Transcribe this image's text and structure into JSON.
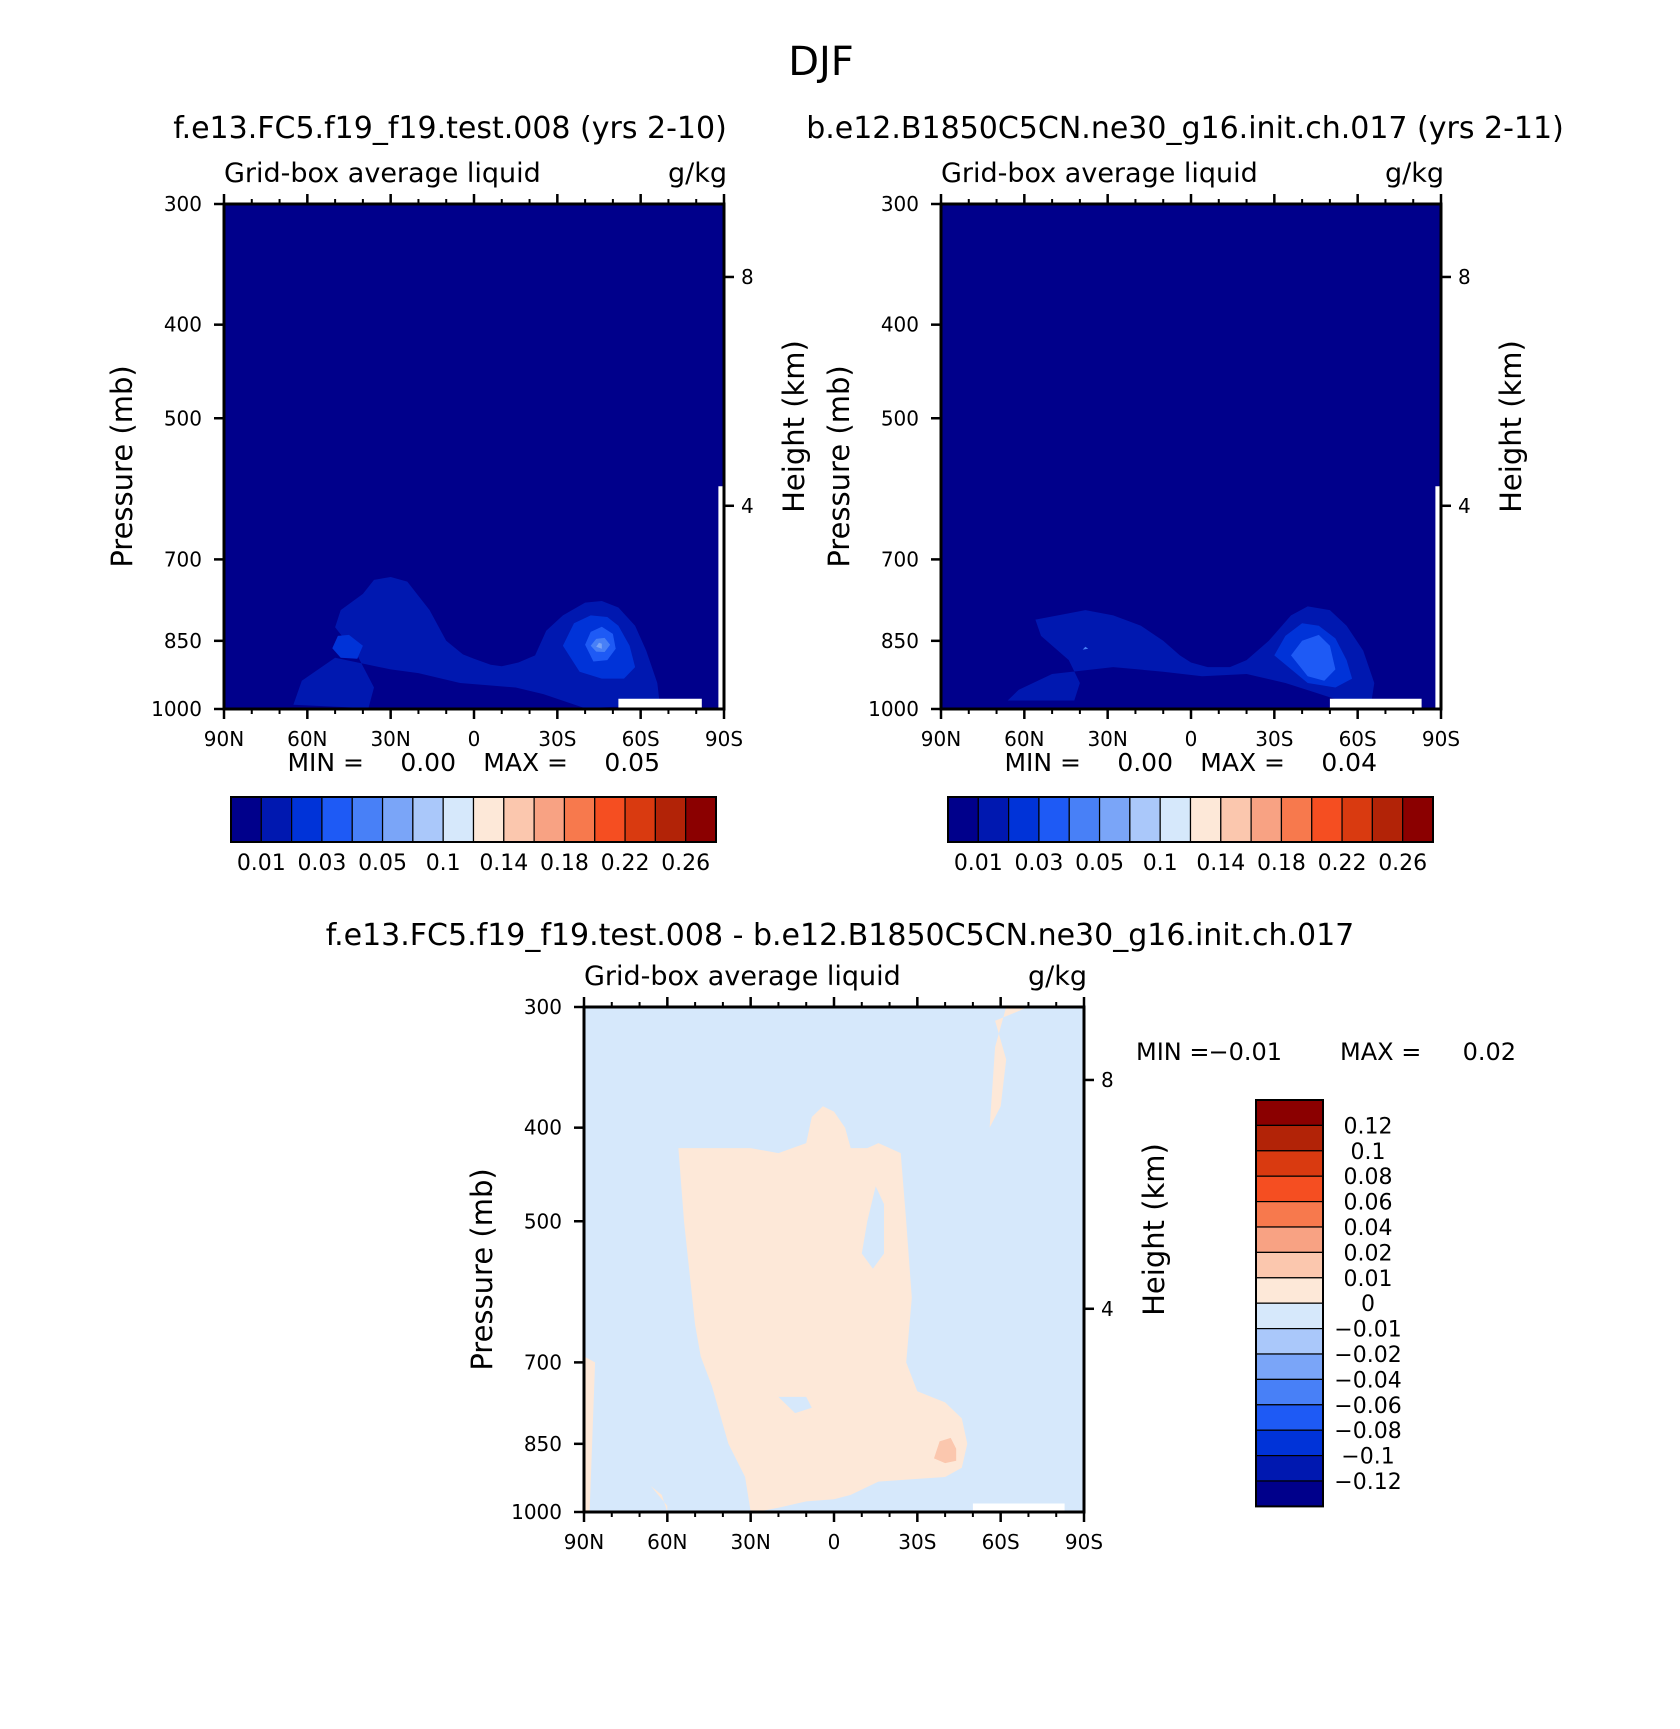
{
  "figure": {
    "season": "DJF",
    "title_left": "f.e13.FC5.f19_f19.test.008 (yrs 2-10)",
    "title_right": "b.e12.B1850C5CN.ne30_g16.init.ch.017 (yrs 2-11)",
    "title_diff": "f.e13.FC5.f19_f19.test.008 - b.e12.B1850C5CN.ne30_g16.init.ch.017"
  },
  "chart_data": [
    {
      "type": "heatmap",
      "variable": "Grid-box average liquid",
      "units": "g/kg",
      "ylabel": "Pressure (mb)",
      "ylabel_right": "Height (km)",
      "x_ticks": [
        "90N",
        "60N",
        "30N",
        "0",
        "30S",
        "60S",
        "90S"
      ],
      "x_values": [
        90,
        60,
        30,
        0,
        -30,
        -60,
        -90
      ],
      "y_ticks": [
        "300",
        "400",
        "500",
        "700",
        "850",
        "1000"
      ],
      "y_values": [
        300,
        400,
        500,
        700,
        850,
        1000
      ],
      "y_right_ticks": [
        "8",
        "4"
      ],
      "y_right_pressures": [
        357,
        616
      ],
      "min_label": "MIN =",
      "min_value": "0.00",
      "max_label": "MAX =",
      "max_value": "0.05",
      "background_level": 0.0,
      "regions": [
        {
          "level": 0.01,
          "pts": [
            [
              38,
              998
            ],
            [
              36,
              950
            ],
            [
              42,
              880
            ],
            [
              50,
              823
            ],
            [
              48,
              790
            ],
            [
              40,
              760
            ],
            [
              36,
              735
            ],
            [
              30,
              730
            ],
            [
              24,
              738
            ],
            [
              16,
              790
            ],
            [
              10,
              850
            ],
            [
              4,
              878
            ],
            [
              0,
              887
            ],
            [
              -6,
              900
            ],
            [
              -10,
              903
            ],
            [
              -16,
              895
            ],
            [
              -22,
              880
            ],
            [
              -26,
              830
            ],
            [
              -32,
              800
            ],
            [
              -40,
              776
            ],
            [
              -46,
              773
            ],
            [
              -52,
              785
            ],
            [
              -58,
              820
            ],
            [
              -62,
              870
            ],
            [
              -66,
              940
            ],
            [
              -67,
              995
            ],
            [
              -50,
              995
            ],
            [
              -40,
              998
            ],
            [
              -25,
              965
            ],
            [
              -15,
              950
            ],
            [
              -5,
              945
            ],
            [
              5,
              940
            ],
            [
              20,
              918
            ],
            [
              30,
              910
            ],
            [
              50,
              885
            ],
            [
              62,
              935
            ],
            [
              65,
              990
            ]
          ]
        },
        {
          "level": 0.02,
          "pts": [
            [
              -32,
              860
            ],
            [
              -36,
              815
            ],
            [
              -42,
              800
            ],
            [
              -48,
              803
            ],
            [
              -52,
              820
            ],
            [
              -56,
              860
            ],
            [
              -58,
              905
            ],
            [
              -54,
              930
            ],
            [
              -46,
              930
            ],
            [
              -38,
              915
            ]
          ]
        },
        {
          "level": 0.02,
          "pts": [
            [
              40,
              860
            ],
            [
              45,
              838
            ],
            [
              49,
              840
            ],
            [
              51,
              865
            ],
            [
              48,
              885
            ],
            [
              42,
              887
            ]
          ]
        },
        {
          "level": 0.03,
          "pts": [
            [
              -40,
              858
            ],
            [
              -42,
              832
            ],
            [
              -46,
              822
            ],
            [
              -50,
              836
            ],
            [
              -51,
              866
            ],
            [
              -48,
              890
            ],
            [
              -43,
              893
            ]
          ]
        },
        {
          "level": 0.04,
          "pts": [
            [
              -42,
              860
            ],
            [
              -44,
              846
            ],
            [
              -47,
              844
            ],
            [
              -49,
              858
            ],
            [
              -47,
              873
            ],
            [
              -44,
              872
            ]
          ]
        },
        {
          "level": 0.05,
          "pts": [
            [
              -44,
              862
            ],
            [
              -45,
              854
            ],
            [
              -46,
              856
            ],
            [
              -46,
              866
            ]
          ]
        }
      ],
      "missing": [
        {
          "pts": [
            [
              -52,
              1000
            ],
            [
              -52,
              976
            ],
            [
              -82,
              976
            ],
            [
              -82,
              1000
            ]
          ]
        },
        {
          "pts": [
            [
              -88,
              1000
            ],
            [
              -88,
              588
            ],
            [
              -90,
              588
            ],
            [
              -90,
              1000
            ]
          ]
        }
      ]
    },
    {
      "type": "heatmap",
      "variable": "Grid-box average liquid",
      "units": "g/kg",
      "ylabel": "Pressure (mb)",
      "ylabel_right": "Height (km)",
      "x_ticks": [
        "90N",
        "60N",
        "30N",
        "0",
        "30S",
        "60S",
        "90S"
      ],
      "x_values": [
        90,
        60,
        30,
        0,
        -30,
        -60,
        -90
      ],
      "y_ticks": [
        "300",
        "400",
        "500",
        "700",
        "850",
        "1000"
      ],
      "y_values": [
        300,
        400,
        500,
        700,
        850,
        1000
      ],
      "y_right_ticks": [
        "8",
        "4"
      ],
      "y_right_pressures": [
        357,
        616
      ],
      "min_label": "MIN =",
      "min_value": "0.00",
      "max_label": "MAX =",
      "max_value": "0.04",
      "background_level": 0.0,
      "regions": [
        {
          "level": 0.01,
          "pts": [
            [
              42,
              980
            ],
            [
              40,
              940
            ],
            [
              44,
              890
            ],
            [
              54,
              840
            ],
            [
              56,
              808
            ],
            [
              46,
              798
            ],
            [
              38,
              790
            ],
            [
              28,
              800
            ],
            [
              18,
              820
            ],
            [
              10,
              850
            ],
            [
              4,
              880
            ],
            [
              0,
              895
            ],
            [
              -6,
              905
            ],
            [
              -14,
              905
            ],
            [
              -20,
              890
            ],
            [
              -28,
              850
            ],
            [
              -36,
              800
            ],
            [
              -42,
              783
            ],
            [
              -50,
              790
            ],
            [
              -56,
              820
            ],
            [
              -62,
              870
            ],
            [
              -66,
              940
            ],
            [
              -65,
              980
            ],
            [
              -56,
              985
            ],
            [
              -44,
              960
            ],
            [
              -34,
              940
            ],
            [
              -20,
              920
            ],
            [
              -4,
              925
            ],
            [
              10,
              915
            ],
            [
              28,
              905
            ],
            [
              50,
              920
            ],
            [
              62,
              955
            ],
            [
              66,
              980
            ]
          ]
        },
        {
          "level": 0.02,
          "pts": [
            [
              -30,
              880
            ],
            [
              -34,
              840
            ],
            [
              -40,
              815
            ],
            [
              -46,
              820
            ],
            [
              -52,
              845
            ],
            [
              -56,
              890
            ],
            [
              -58,
              930
            ],
            [
              -52,
              950
            ],
            [
              -42,
              940
            ]
          ]
        },
        {
          "level": 0.03,
          "pts": [
            [
              -36,
              880
            ],
            [
              -40,
              850
            ],
            [
              -46,
              838
            ],
            [
              -50,
              860
            ],
            [
              -52,
              910
            ],
            [
              -48,
              935
            ],
            [
              -42,
              925
            ]
          ]
        },
        {
          "level": 0.04,
          "pts": [
            [
              37,
              866
            ],
            [
              38,
              862
            ],
            [
              39,
              868
            ]
          ]
        }
      ],
      "missing": [
        {
          "pts": [
            [
              -50,
              1000
            ],
            [
              -50,
              976
            ],
            [
              -83,
              976
            ],
            [
              -83,
              1000
            ]
          ]
        },
        {
          "pts": [
            [
              -88,
              1000
            ],
            [
              -88,
              588
            ],
            [
              -90,
              588
            ],
            [
              -90,
              1000
            ]
          ]
        }
      ]
    },
    {
      "type": "heatmap",
      "variable": "Grid-box average liquid",
      "units": "g/kg",
      "ylabel": "Pressure (mb)",
      "ylabel_right": "Height (km)",
      "x_ticks": [
        "90N",
        "60N",
        "30N",
        "0",
        "30S",
        "60S",
        "90S"
      ],
      "x_values": [
        90,
        60,
        30,
        0,
        -30,
        -60,
        -90
      ],
      "y_ticks": [
        "300",
        "400",
        "500",
        "700",
        "850",
        "1000"
      ],
      "y_values": [
        300,
        400,
        500,
        700,
        850,
        1000
      ],
      "y_right_ticks": [
        "8",
        "4"
      ],
      "y_right_pressures": [
        357,
        616
      ],
      "min_label": "MIN =",
      "min_value": "-0.01",
      "max_label": "MAX =",
      "max_value": "0.02",
      "background_level": -0.01,
      "regions": [
        {
          "level": 0.01,
          "pts": [
            [
              30,
              1000
            ],
            [
              32,
              920
            ],
            [
              38,
              850
            ],
            [
              44,
              740
            ],
            [
              48,
              690
            ],
            [
              50,
              640
            ],
            [
              54,
              500
            ],
            [
              56,
              420
            ],
            [
              30,
              420
            ],
            [
              20,
              425
            ],
            [
              10,
              415
            ],
            [
              8,
              390
            ],
            [
              4,
              380
            ],
            [
              0,
              385
            ],
            [
              -4,
              400
            ],
            [
              -6,
              420
            ],
            [
              -12,
              420
            ],
            [
              -16,
              415
            ],
            [
              -24,
              425
            ],
            [
              -26,
              500
            ],
            [
              -28,
              600
            ],
            [
              -26,
              700
            ],
            [
              -30,
              750
            ],
            [
              -40,
              770
            ],
            [
              -46,
              800
            ],
            [
              -48,
              850
            ],
            [
              -46,
              900
            ],
            [
              -40,
              920
            ],
            [
              -28,
              925
            ],
            [
              -16,
              930
            ],
            [
              -6,
              960
            ],
            [
              0,
              970
            ],
            [
              10,
              975
            ],
            [
              20,
              990
            ],
            [
              28,
              1000
            ]
          ]
        },
        {
          "level": 0.01,
          "pts": [
            [
              60,
              1000
            ],
            [
              62,
              960
            ],
            [
              66,
              940
            ],
            [
              60,
              985
            ]
          ]
        },
        {
          "level": 0.01,
          "pts": [
            [
              88,
              1000
            ],
            [
              86,
              700
            ],
            [
              90,
              690
            ],
            [
              90,
              1000
            ]
          ]
        },
        {
          "level": 0.01,
          "pts": [
            [
              -56,
              400
            ],
            [
              -60,
              380
            ],
            [
              -62,
              340
            ],
            [
              -58,
              310
            ],
            [
              -70,
              300
            ],
            [
              -62,
              300
            ],
            [
              -58,
              330
            ]
          ]
        },
        {
          "level": 0.02,
          "pts": [
            [
              -36,
              880
            ],
            [
              -38,
              845
            ],
            [
              -42,
              838
            ],
            [
              -44,
              860
            ],
            [
              -44,
              885
            ],
            [
              -40,
              890
            ]
          ]
        }
      ],
      "holes": [
        {
          "level": -0.01,
          "pts": [
            [
              14,
              790
            ],
            [
              20,
              760
            ],
            [
              10,
              760
            ],
            [
              8,
              780
            ]
          ]
        },
        {
          "level": -0.01,
          "pts": [
            [
              -10,
              540
            ],
            [
              -12,
              500
            ],
            [
              -15,
              460
            ],
            [
              -18,
              480
            ],
            [
              -18,
              540
            ],
            [
              -14,
              560
            ]
          ]
        }
      ],
      "missing": [
        {
          "pts": [
            [
              -50,
              1000
            ],
            [
              -50,
              980
            ],
            [
              -83,
              980
            ],
            [
              -83,
              1000
            ]
          ]
        }
      ]
    }
  ],
  "colorbar_abs": {
    "colors": [
      "#00008b",
      "#0018b0",
      "#0033d8",
      "#1e5af5",
      "#4880f7",
      "#7aa5f8",
      "#aac8fa",
      "#d6e8fb",
      "#fde8d8",
      "#fbc7ae",
      "#f8a283",
      "#f7794d",
      "#f54e21",
      "#d93a10",
      "#b22307",
      "#8b0000"
    ],
    "tick_labels": [
      "0.01",
      "0.03",
      "0.05",
      "0.1",
      "0.14",
      "0.18",
      "0.22",
      "0.26"
    ],
    "levels": [
      0.005,
      0.01,
      0.02,
      0.03,
      0.04,
      0.05,
      0.07,
      0.1,
      0.12,
      0.14,
      0.16,
      0.18,
      0.2,
      0.22,
      0.24,
      0.26
    ]
  },
  "colorbar_diff": {
    "colors": [
      "#00008b",
      "#0018b0",
      "#0033d8",
      "#1e5af5",
      "#4880f7",
      "#7aa5f8",
      "#aac8fa",
      "#d6e8fb",
      "#fde8d8",
      "#fbc7ae",
      "#f8a283",
      "#f7794d",
      "#f54e21",
      "#d93a10",
      "#b22307",
      "#8b0000"
    ],
    "tick_labels": [
      "0.12",
      "0.1",
      "0.08",
      "0.06",
      "0.04",
      "0.02",
      "0.01",
      "0",
      "-0.01",
      "-0.02",
      "-0.04",
      "-0.06",
      "-0.08",
      "-0.1",
      "-0.12"
    ]
  }
}
